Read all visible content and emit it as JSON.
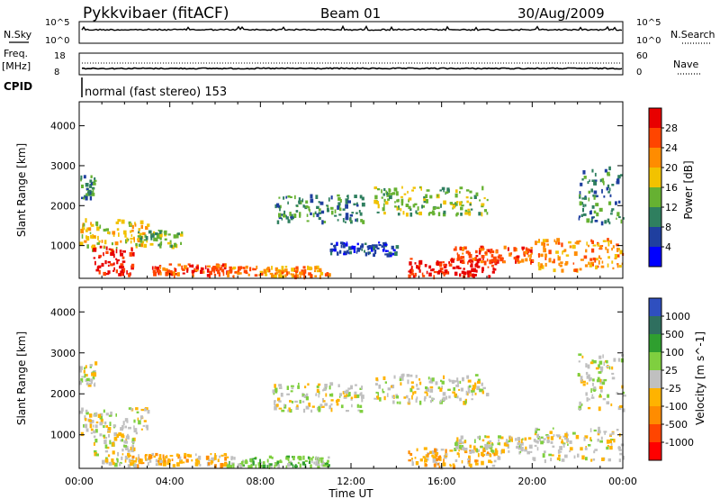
{
  "header": {
    "station": "Pykkvibaer (fitACF)",
    "beam": "Beam 01",
    "date": "30/Aug/2009"
  },
  "top_panel_labels": {
    "nsky": "N.Sky",
    "nsearch": "N.Search",
    "freq": "Freq.",
    "freq_unit": "[MHz]",
    "nave": "Nave",
    "cpid": "CPID",
    "cpid_value": "normal (fast stereo) 153"
  },
  "top_ticks": {
    "noise_left_hi": "10^5",
    "noise_left_lo": "10^0",
    "noise_right_hi": "10^5",
    "noise_right_lo": "10^0",
    "freq_left_hi": "18",
    "freq_left_lo": "8",
    "nave_right_hi": "60",
    "nave_right_lo": "0"
  },
  "colors": {
    "power_scale": [
      "#0000ff",
      "#1f3f9f",
      "#2f7f5f",
      "#66b132",
      "#f2c200",
      "#ff8c00",
      "#ff4500",
      "#e80000"
    ],
    "velocity_scale": [
      "#ff0000",
      "#ff4500",
      "#ff8c00",
      "#ffb300",
      "#c0c0c0",
      "#7fcf3f",
      "#2f9f2f",
      "#2f6f5f",
      "#2f4fbf"
    ]
  },
  "chart_data": [
    {
      "type": "heatmap",
      "name": "power",
      "xlabel": "Time UT",
      "ylabel": "Slant Range [km]",
      "colorbar_label": "Power [dB]",
      "colorbar_ticks": [
        "4",
        "8",
        "12",
        "16",
        "20",
        "24",
        "28"
      ],
      "x_ticks": [
        "00:00",
        "04:00",
        "08:00",
        "12:00",
        "16:00",
        "20:00",
        "00:00"
      ],
      "y_ticks": [
        "1000",
        "2000",
        "3000",
        "4000"
      ],
      "xlim_hours": [
        0,
        24
      ],
      "ylim_km": [
        180,
        4600
      ],
      "regions": [
        {
          "t0": 0.0,
          "t1": 0.7,
          "r0": 2200,
          "r1": 2800,
          "level": 2
        },
        {
          "t0": 0.0,
          "t1": 3.0,
          "r0": 900,
          "r1": 1700,
          "level": 4
        },
        {
          "t0": 0.6,
          "t1": 2.4,
          "r0": 300,
          "r1": 1000,
          "level": 7
        },
        {
          "t0": 2.4,
          "t1": 4.5,
          "r0": 1000,
          "r1": 1400,
          "level": 3
        },
        {
          "t0": 3.0,
          "t1": 6.5,
          "r0": 280,
          "r1": 560,
          "level": 6
        },
        {
          "t0": 6.5,
          "t1": 11.0,
          "r0": 250,
          "r1": 500,
          "level": 5
        },
        {
          "t0": 8.5,
          "t1": 12.5,
          "r0": 1600,
          "r1": 2300,
          "level": 2
        },
        {
          "t0": 11.0,
          "t1": 14.0,
          "r0": 800,
          "r1": 1100,
          "level": 1
        },
        {
          "t0": 13.0,
          "t1": 18.0,
          "r0": 1800,
          "r1": 2500,
          "level": 3
        },
        {
          "t0": 14.5,
          "t1": 18.5,
          "r0": 250,
          "r1": 700,
          "level": 7
        },
        {
          "t0": 16.5,
          "t1": 20.0,
          "r0": 600,
          "r1": 1000,
          "level": 6
        },
        {
          "t0": 20.0,
          "t1": 24.0,
          "r0": 400,
          "r1": 1200,
          "level": 5
        },
        {
          "t0": 22.0,
          "t1": 24.0,
          "r0": 1600,
          "r1": 3000,
          "level": 2
        }
      ]
    },
    {
      "type": "heatmap",
      "name": "velocity",
      "xlabel": "Time UT",
      "ylabel": "Slant Range [km]",
      "colorbar_label": "Velocity [m s^-1]",
      "colorbar_ticks": [
        "1000",
        "500",
        "100",
        "25",
        "-25",
        "-100",
        "-500",
        "-1000"
      ],
      "x_ticks": [
        "00:00",
        "04:00",
        "08:00",
        "12:00",
        "16:00",
        "20:00",
        "00:00"
      ],
      "y_ticks": [
        "1000",
        "2000",
        "3000",
        "4000"
      ],
      "xlim_hours": [
        0,
        24
      ],
      "ylim_km": [
        180,
        4600
      ],
      "regions": [
        {
          "t0": 0.0,
          "t1": 0.7,
          "r0": 2200,
          "r1": 2800,
          "level": 4
        },
        {
          "t0": 0.0,
          "t1": 3.0,
          "r0": 900,
          "r1": 1700,
          "level": 4
        },
        {
          "t0": 0.6,
          "t1": 2.4,
          "r0": 300,
          "r1": 1000,
          "level": 4
        },
        {
          "t0": 2.0,
          "t1": 6.5,
          "r0": 280,
          "r1": 560,
          "level": 3
        },
        {
          "t0": 6.5,
          "t1": 11.0,
          "r0": 250,
          "r1": 500,
          "level": 5
        },
        {
          "t0": 8.5,
          "t1": 12.5,
          "r0": 1600,
          "r1": 2300,
          "level": 4
        },
        {
          "t0": 13.0,
          "t1": 18.0,
          "r0": 1800,
          "r1": 2500,
          "level": 4
        },
        {
          "t0": 14.5,
          "t1": 18.5,
          "r0": 250,
          "r1": 700,
          "level": 3
        },
        {
          "t0": 16.5,
          "t1": 20.0,
          "r0": 600,
          "r1": 1000,
          "level": 4
        },
        {
          "t0": 20.0,
          "t1": 24.0,
          "r0": 400,
          "r1": 1200,
          "level": 4
        },
        {
          "t0": 22.0,
          "t1": 24.0,
          "r0": 1600,
          "r1": 3000,
          "level": 4
        }
      ]
    }
  ]
}
